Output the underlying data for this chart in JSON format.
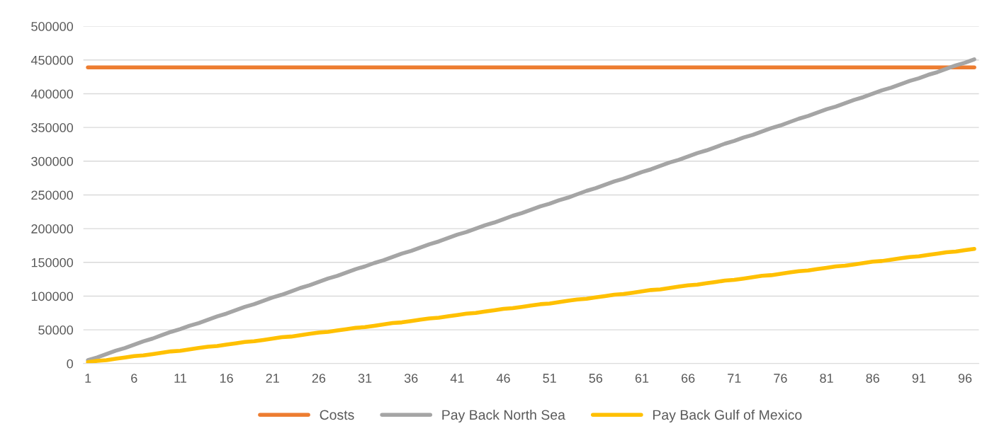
{
  "chart_data": {
    "type": "line",
    "categories": [
      "1",
      null,
      null,
      null,
      null,
      "6",
      null,
      null,
      null,
      null,
      "11",
      null,
      null,
      null,
      null,
      "16",
      null,
      null,
      null,
      null,
      "21",
      null,
      null,
      null,
      null,
      "26",
      null,
      null,
      null,
      null,
      "31",
      null,
      null,
      null,
      null,
      "36",
      null,
      null,
      null,
      null,
      "41",
      null,
      null,
      null,
      null,
      "46",
      null,
      null,
      null,
      null,
      "51",
      null,
      null,
      null,
      null,
      "56",
      null,
      null,
      null,
      null,
      "61",
      null,
      null,
      null,
      null,
      "66",
      null,
      null,
      null,
      null,
      "71",
      null,
      null,
      null,
      null,
      "76",
      null,
      null,
      null,
      null,
      "81",
      null,
      null,
      null,
      null,
      "86",
      null,
      null,
      null,
      null,
      "91",
      null,
      null,
      null,
      null,
      "96",
      null
    ],
    "series": [
      {
        "name": "Costs",
        "color": "#ed7d31",
        "values": [
          439000,
          439000,
          439000,
          439000,
          439000,
          439000,
          439000,
          439000,
          439000,
          439000,
          439000,
          439000,
          439000,
          439000,
          439000,
          439000,
          439000,
          439000,
          439000,
          439000,
          439000,
          439000,
          439000,
          439000,
          439000,
          439000,
          439000,
          439000,
          439000,
          439000,
          439000,
          439000,
          439000,
          439000,
          439000,
          439000,
          439000,
          439000,
          439000,
          439000,
          439000,
          439000,
          439000,
          439000,
          439000,
          439000,
          439000,
          439000,
          439000,
          439000,
          439000,
          439000,
          439000,
          439000,
          439000,
          439000,
          439000,
          439000,
          439000,
          439000,
          439000,
          439000,
          439000,
          439000,
          439000,
          439000,
          439000,
          439000,
          439000,
          439000,
          439000,
          439000,
          439000,
          439000,
          439000,
          439000,
          439000,
          439000,
          439000,
          439000,
          439000,
          439000,
          439000,
          439000,
          439000,
          439000,
          439000,
          439000,
          439000,
          439000,
          439000,
          439000,
          439000,
          439000,
          439000,
          439000,
          439000
        ]
      },
      {
        "name": "Pay Back North Sea",
        "color": "#a5a5a5",
        "values": [
          5000,
          9000,
          14000,
          19000,
          23000,
          28000,
          33000,
          37000,
          42000,
          47000,
          51000,
          56000,
          60000,
          65000,
          70000,
          74000,
          79000,
          84000,
          88000,
          93000,
          98000,
          102000,
          107000,
          112000,
          116000,
          121000,
          126000,
          130000,
          135000,
          140000,
          144000,
          149000,
          153000,
          158000,
          163000,
          167000,
          172000,
          177000,
          181000,
          186000,
          191000,
          195000,
          200000,
          205000,
          209000,
          214000,
          219000,
          223000,
          228000,
          233000,
          237000,
          242000,
          246000,
          251000,
          256000,
          260000,
          265000,
          270000,
          274000,
          279000,
          284000,
          288000,
          293000,
          298000,
          302000,
          307000,
          312000,
          316000,
          321000,
          326000,
          330000,
          335000,
          339000,
          344000,
          349000,
          353000,
          358000,
          363000,
          367000,
          372000,
          377000,
          381000,
          386000,
          391000,
          395000,
          400000,
          405000,
          409000,
          414000,
          419000,
          423000,
          428000,
          432000,
          437000,
          442000,
          446000,
          451000
        ]
      },
      {
        "name": "Pay Back Gulf of Mexico",
        "color": "#ffc000",
        "values": [
          2000,
          4000,
          5000,
          7000,
          9000,
          11000,
          12000,
          14000,
          16000,
          18000,
          19000,
          21000,
          23000,
          25000,
          26000,
          28000,
          30000,
          32000,
          33000,
          35000,
          37000,
          39000,
          40000,
          42000,
          44000,
          46000,
          47000,
          49000,
          51000,
          53000,
          54000,
          56000,
          58000,
          60000,
          61000,
          63000,
          65000,
          67000,
          68000,
          70000,
          72000,
          74000,
          75000,
          77000,
          79000,
          81000,
          82000,
          84000,
          86000,
          88000,
          89000,
          91000,
          93000,
          95000,
          96000,
          98000,
          100000,
          102000,
          103000,
          105000,
          107000,
          109000,
          110000,
          112000,
          114000,
          116000,
          117000,
          119000,
          121000,
          123000,
          124000,
          126000,
          128000,
          130000,
          131000,
          133000,
          135000,
          137000,
          138000,
          140000,
          142000,
          144000,
          145000,
          147000,
          149000,
          151000,
          152000,
          154000,
          156000,
          158000,
          159000,
          161000,
          163000,
          165000,
          166000,
          168000,
          170000
        ]
      }
    ],
    "ylim": [
      0,
      500000
    ],
    "yticks": [
      0,
      50000,
      100000,
      150000,
      200000,
      250000,
      300000,
      350000,
      400000,
      450000,
      500000
    ],
    "grid": "y",
    "legend": "bottom",
    "marker": "none",
    "line_style": "solid"
  }
}
